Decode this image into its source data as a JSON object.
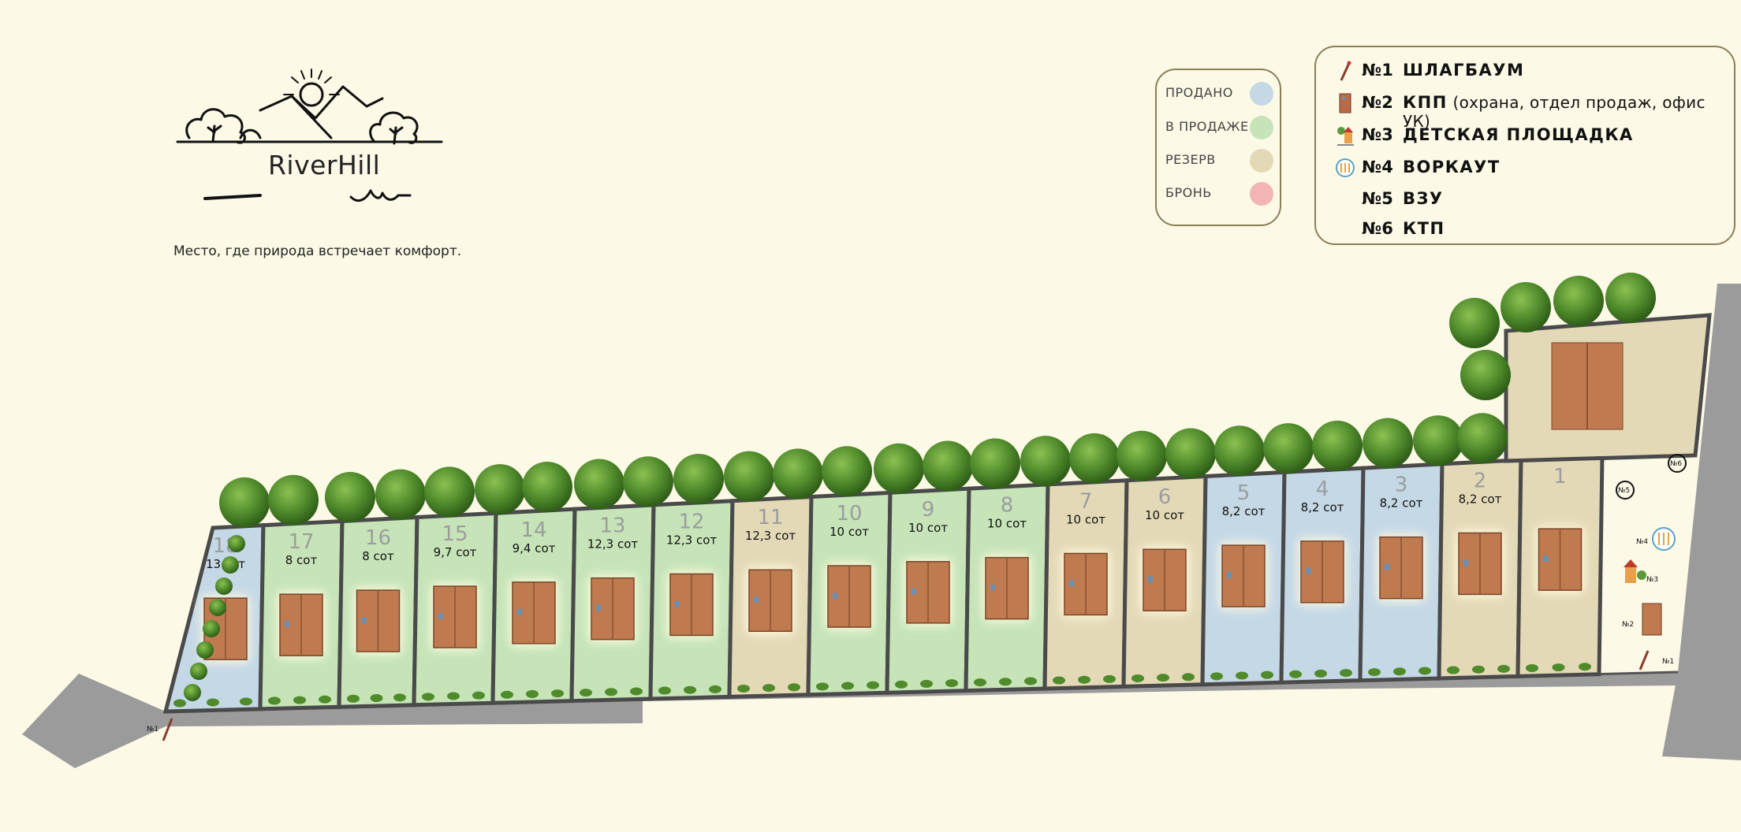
{
  "brand": {
    "name": "RiverHill",
    "tagline": "Место, где природа встречает комфорт."
  },
  "status_legend": [
    {
      "label": "ПРОДАНО",
      "color": "#c5d8e6"
    },
    {
      "label": "В ПРОДАЖЕ",
      "color": "#c6e4b8"
    },
    {
      "label": "РЕЗЕРВ",
      "color": "#e4d9b7"
    },
    {
      "label": "БРОНЬ",
      "color": "#f2b5b3"
    }
  ],
  "objects_legend": [
    {
      "num": "№1",
      "name": "ШЛАГБАУМ",
      "desc": "",
      "icon": "barrier-icon"
    },
    {
      "num": "№2",
      "name": "КПП",
      "desc": " (охрана, отдел продаж, офис УК)",
      "icon": "checkpoint-icon"
    },
    {
      "num": "№3",
      "name": "ДЕТСКАЯ ПЛОЩАДКА",
      "desc": "",
      "icon": "playground-icon"
    },
    {
      "num": "№4",
      "name": "ВОРКАУТ",
      "desc": "",
      "icon": "workout-icon"
    },
    {
      "num": "№5",
      "name": "ВЗУ",
      "desc": "",
      "icon": ""
    },
    {
      "num": "№6",
      "name": "КТП",
      "desc": "",
      "icon": ""
    }
  ],
  "plots": [
    {
      "num": "18",
      "size": "13  сот",
      "status": "sold"
    },
    {
      "num": "17",
      "size": "8  сот",
      "status": "for_sale"
    },
    {
      "num": "16",
      "size": "8  сот",
      "status": "for_sale"
    },
    {
      "num": "15",
      "size": "9,7 сот",
      "status": "for_sale"
    },
    {
      "num": "14",
      "size": "9,4 сот",
      "status": "for_sale"
    },
    {
      "num": "13",
      "size": "12,3 сот",
      "status": "for_sale"
    },
    {
      "num": "12",
      "size": "12,3 сот",
      "status": "for_sale"
    },
    {
      "num": "11",
      "size": "12,3 сот",
      "status": "reserve"
    },
    {
      "num": "10",
      "size": "10 сот",
      "status": "for_sale"
    },
    {
      "num": "9",
      "size": "10 сот",
      "status": "for_sale"
    },
    {
      "num": "8",
      "size": "10 сот",
      "status": "for_sale"
    },
    {
      "num": "7",
      "size": "10 сот",
      "status": "reserve"
    },
    {
      "num": "6",
      "size": "10 сот",
      "status": "reserve"
    },
    {
      "num": "5",
      "size": "8,2 сот",
      "status": "sold"
    },
    {
      "num": "4",
      "size": "8,2 сот",
      "status": "sold"
    },
    {
      "num": "3",
      "size": "8,2 сот",
      "status": "sold"
    },
    {
      "num": "2",
      "size": "8,2 сот",
      "status": "reserve"
    },
    {
      "num": "1",
      "size": "",
      "status": "reserve"
    }
  ],
  "map_markers": {
    "n1": "№1",
    "n2": "№2",
    "n3": "№3",
    "n4": "№4",
    "n5": "№5",
    "n6": "№6"
  },
  "colors": {
    "sold": "#c5d8e6",
    "for_sale": "#c6e4b8",
    "reserve": "#e4d9b7",
    "booked": "#f2b5b3",
    "road": "#9b9b9b",
    "fence": "#4a4a4a",
    "roof": "#c07a50"
  }
}
